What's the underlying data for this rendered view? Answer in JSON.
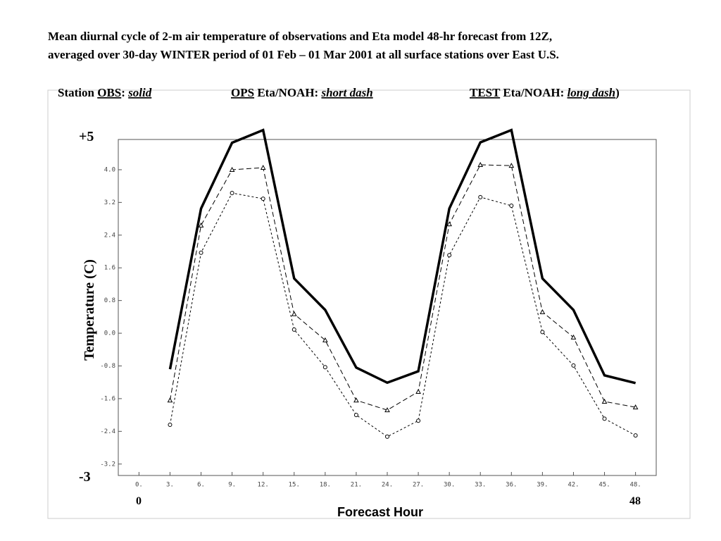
{
  "chart_data": {
    "type": "line",
    "title": [
      "Mean diurnal cycle of 2-m air temperature of observations and Eta model 48-hr forecast from 12Z,",
      "averaged over 30-day WINTER period of 01 Feb –  01 Mar 2001 at all surface stations over East U.S."
    ],
    "legend": [
      [
        "Station ",
        "OBS",
        ": ",
        "solid"
      ],
      [
        "OPS",
        " Eta/NOAH: ",
        "short dash"
      ],
      [
        "TEST",
        " Eta/NOAH: ",
        "long dash",
        ")"
      ]
    ],
    "x_label": "Forecast Hour",
    "y_label": "Temperature (C)",
    "annotations": [
      "+5",
      "-3",
      "0",
      "48"
    ],
    "x": [
      3,
      6,
      9,
      12,
      15,
      18,
      21,
      24,
      27,
      30,
      33,
      36,
      39,
      42,
      45,
      48
    ],
    "xlim": [
      -2,
      50
    ],
    "ylim": [
      -3.48,
      4.74
    ],
    "xticks": [
      {
        "value": 0,
        "label": "0."
      },
      {
        "value": 3,
        "label": "3."
      },
      {
        "value": 6,
        "label": "6."
      },
      {
        "value": 9,
        "label": "9."
      },
      {
        "value": 12,
        "label": "12."
      },
      {
        "value": 15,
        "label": "15."
      },
      {
        "value": 18,
        "label": "18."
      },
      {
        "value": 21,
        "label": "21."
      },
      {
        "value": 24,
        "label": "24."
      },
      {
        "value": 27,
        "label": "27."
      },
      {
        "value": 30,
        "label": "30."
      },
      {
        "value": 33,
        "label": "33."
      },
      {
        "value": 36,
        "label": "36."
      },
      {
        "value": 39,
        "label": "39."
      },
      {
        "value": 42,
        "label": "42."
      },
      {
        "value": 45,
        "label": "45."
      },
      {
        "value": 48,
        "label": "48."
      }
    ],
    "yticks": [
      {
        "value": -3.2,
        "label": "-3.2"
      },
      {
        "value": -2.4,
        "label": "-2.4"
      },
      {
        "value": -1.6,
        "label": "-1.6"
      },
      {
        "value": -0.8,
        "label": "-0.8"
      },
      {
        "value": 0,
        "label": "0.0"
      },
      {
        "value": 0.8,
        "label": "0.8"
      },
      {
        "value": 1.6,
        "label": "1.6"
      },
      {
        "value": 2.4,
        "label": "2.4"
      },
      {
        "value": 3.2,
        "label": "3.2"
      },
      {
        "value": 4,
        "label": "4.0"
      }
    ],
    "series": [
      {
        "name": "OBS",
        "color": "#000000",
        "dash": "solid",
        "marker": "none",
        "values": [
          -0.88,
          3.05,
          4.66,
          4.97,
          1.34,
          0.57,
          -0.84,
          -1.21,
          -0.93,
          3.05,
          4.67,
          4.97,
          1.34,
          0.57,
          -1.03,
          -1.22
        ]
      },
      {
        "name": "OPS",
        "color": "#000000",
        "dash": "short",
        "marker": "circle",
        "values": [
          -2.24,
          1.97,
          3.43,
          3.29,
          0.09,
          -0.83,
          -2.0,
          -2.53,
          -2.14,
          1.91,
          3.33,
          3.12,
          0.03,
          -0.79,
          -2.09,
          -2.5
        ]
      },
      {
        "name": "TEST",
        "color": "#000000",
        "dash": "long",
        "marker": "triangle",
        "values": [
          -1.64,
          2.64,
          4.0,
          4.05,
          0.47,
          -0.17,
          -1.64,
          -1.88,
          -1.43,
          2.67,
          4.12,
          4.1,
          0.52,
          -0.1,
          -1.67,
          -1.81
        ]
      }
    ]
  }
}
